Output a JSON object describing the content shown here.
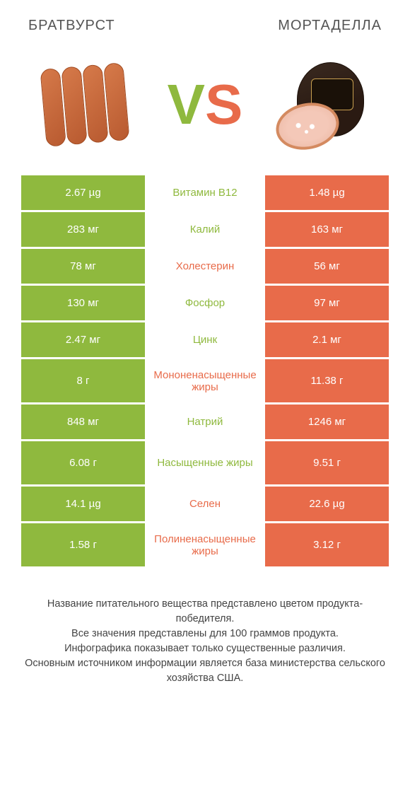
{
  "header": {
    "left_title": "БРАТВУРСТ",
    "right_title": "МОРТАДЕЛЛА"
  },
  "vs": {
    "v": "V",
    "s": "S"
  },
  "colors": {
    "green": "#8fb93e",
    "orange": "#e86b4a",
    "white": "#ffffff",
    "text": "#444"
  },
  "rows": [
    {
      "left": "2.67 µg",
      "label": "Витамин B12",
      "right": "1.48 µg",
      "winner": "left",
      "tall": false
    },
    {
      "left": "283 мг",
      "label": "Калий",
      "right": "163 мг",
      "winner": "left",
      "tall": false
    },
    {
      "left": "78 мг",
      "label": "Холестерин",
      "right": "56 мг",
      "winner": "right",
      "tall": false
    },
    {
      "left": "130 мг",
      "label": "Фосфор",
      "right": "97 мг",
      "winner": "left",
      "tall": false
    },
    {
      "left": "2.47 мг",
      "label": "Цинк",
      "right": "2.1 мг",
      "winner": "left",
      "tall": false
    },
    {
      "left": "8 г",
      "label": "Мононенасыщенные жиры",
      "right": "11.38 г",
      "winner": "right",
      "tall": true
    },
    {
      "left": "848 мг",
      "label": "Натрий",
      "right": "1246 мг",
      "winner": "left",
      "tall": false
    },
    {
      "left": "6.08 г",
      "label": "Насыщенные жиры",
      "right": "9.51 г",
      "winner": "left",
      "tall": true
    },
    {
      "left": "14.1 µg",
      "label": "Селен",
      "right": "22.6 µg",
      "winner": "right",
      "tall": false
    },
    {
      "left": "1.58 г",
      "label": "Полиненасыщенные жиры",
      "right": "3.12 г",
      "winner": "right",
      "tall": true
    }
  ],
  "footer": {
    "line1": "Название питательного вещества представлено цветом продукта-победителя.",
    "line2": "Все значения представлены для 100 граммов продукта.",
    "line3": "Инфографика показывает только существенные различия.",
    "line4": "Основным источником информации является база министерства сельского хозяйства США."
  }
}
